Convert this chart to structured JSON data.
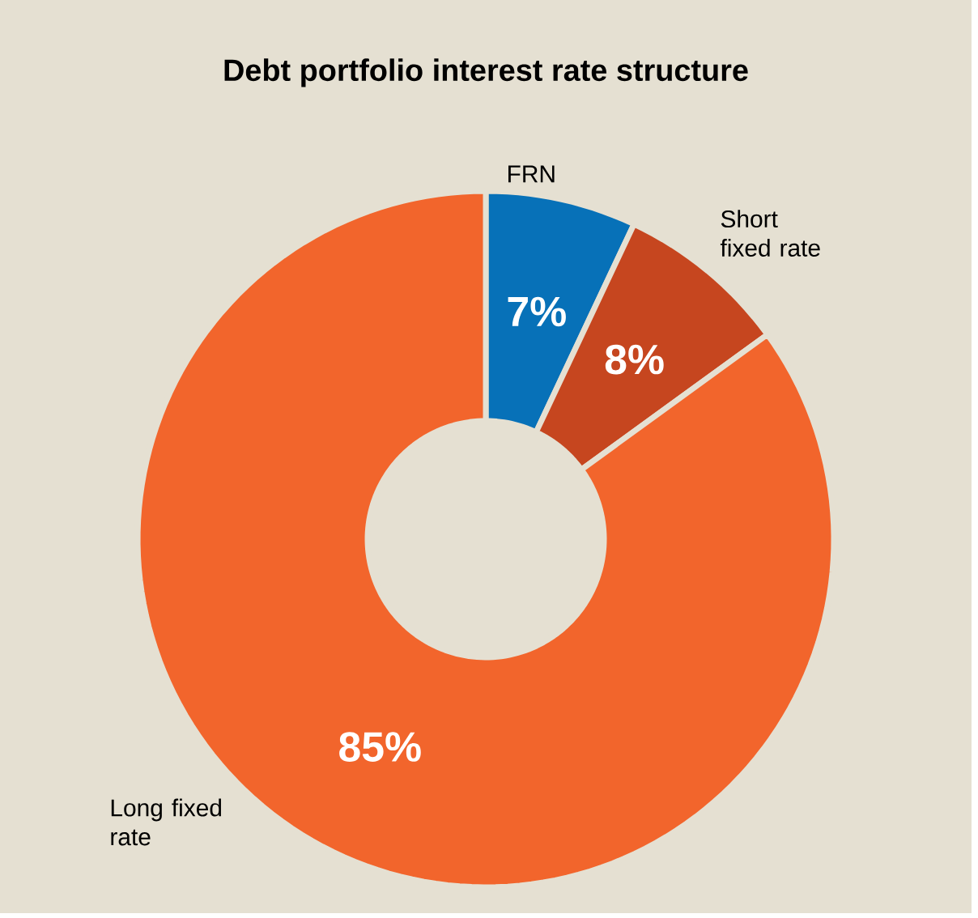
{
  "chart_data": {
    "type": "donut",
    "title": "Debt portfolio interest rate structure",
    "categories": [
      "FRN",
      "Short fixed rate",
      "Long fixed rate"
    ],
    "values": [
      7,
      8,
      85
    ],
    "colors": [
      "#0771b8",
      "#c6461f",
      "#f2652c"
    ],
    "value_labels": [
      "7%",
      "8%",
      "85%"
    ]
  }
}
